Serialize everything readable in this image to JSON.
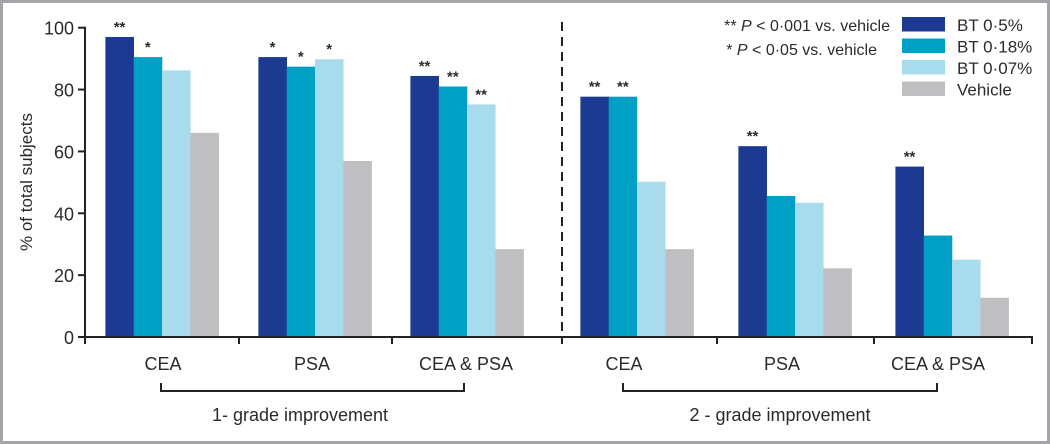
{
  "chart_data": {
    "type": "bar",
    "title": "",
    "ylabel": "% of total subjects",
    "xlabel": "",
    "ylim": [
      0,
      100
    ],
    "yticks": [
      0,
      20,
      40,
      60,
      80,
      100
    ],
    "grid": false,
    "categories": [
      "CEA",
      "PSA",
      "CEA & PSA",
      "CEA",
      "PSA",
      "CEA & PSA"
    ],
    "group_labels": [
      "1- grade improvement",
      "2 - grade improvement"
    ],
    "series": [
      {
        "name": "BT 0·5%",
        "color": "#1c3a92",
        "values": [
          97,
          90.5,
          84.4,
          77.7,
          61.7,
          55.1
        ],
        "sig": [
          "**",
          "*",
          "**",
          "**",
          "**",
          "**"
        ]
      },
      {
        "name": "BT 0·18%",
        "color": "#00a0c6",
        "values": [
          90.5,
          87.4,
          81,
          77.7,
          45.6,
          32.8
        ],
        "sig": [
          "*",
          "*",
          "**",
          "**",
          "",
          ""
        ]
      },
      {
        "name": "BT 0·07%",
        "color": "#a8dcec",
        "values": [
          86.2,
          89.8,
          75.2,
          50.2,
          43.4,
          25
        ],
        "sig": [
          "",
          "*",
          "**",
          "",
          "",
          ""
        ]
      },
      {
        "name": "Vehicle",
        "color": "#bfbfc1",
        "values": [
          66,
          56.9,
          28.4,
          28.4,
          22.2,
          12.7
        ],
        "sig": [
          "",
          "",
          "",
          "",
          "",
          ""
        ]
      }
    ],
    "annotations": [
      "** P < 0·001 vs. vehicle",
      "* P < 0·05 vs. vehicle"
    ],
    "legend_position": "top-right"
  }
}
